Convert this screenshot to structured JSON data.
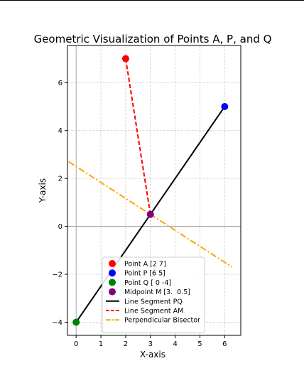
{
  "chart_data": {
    "type": "scatter",
    "title": "Geometric Visualization of Points A, P, and Q",
    "xlabel": "X-axis",
    "ylabel": "Y-axis",
    "xlim": [
      -0.35,
      6.65
    ],
    "ylim": [
      -4.55,
      7.55
    ],
    "xticks": [
      0,
      1,
      2,
      3,
      4,
      5,
      6
    ],
    "yticks": [
      -4,
      -2,
      0,
      2,
      4,
      6
    ],
    "grid": true,
    "legend_position": "lower-center",
    "points": [
      {
        "key": "A",
        "label": "Point A [2 7]",
        "x": 2,
        "y": 7,
        "color": "#ff0000"
      },
      {
        "key": "P",
        "label": "Point P [6 5]",
        "x": 6,
        "y": 5,
        "color": "#0000ff"
      },
      {
        "key": "Q",
        "label": "Point Q [ 0 -4]",
        "x": 0,
        "y": -4,
        "color": "#008000"
      },
      {
        "key": "M",
        "label": "Midpoint M [3.  0.5]",
        "x": 3,
        "y": 0.5,
        "color": "#800080"
      }
    ],
    "lines": [
      {
        "key": "PQ",
        "label": "Line Segment PQ",
        "style": "solid",
        "color": "#000000",
        "x": [
          0,
          6
        ],
        "y": [
          -4,
          5
        ]
      },
      {
        "key": "AM",
        "label": "Line Segment AM",
        "style": "dashed",
        "color": "#ff0000",
        "x": [
          2,
          3
        ],
        "y": [
          7,
          0.5
        ]
      },
      {
        "key": "bisector",
        "label": "Perpendicular Bisector",
        "style": "dashdot",
        "color": "#ffa500",
        "x": [
          -0.3,
          6.3
        ],
        "y": [
          2.7,
          -1.7
        ]
      }
    ]
  }
}
